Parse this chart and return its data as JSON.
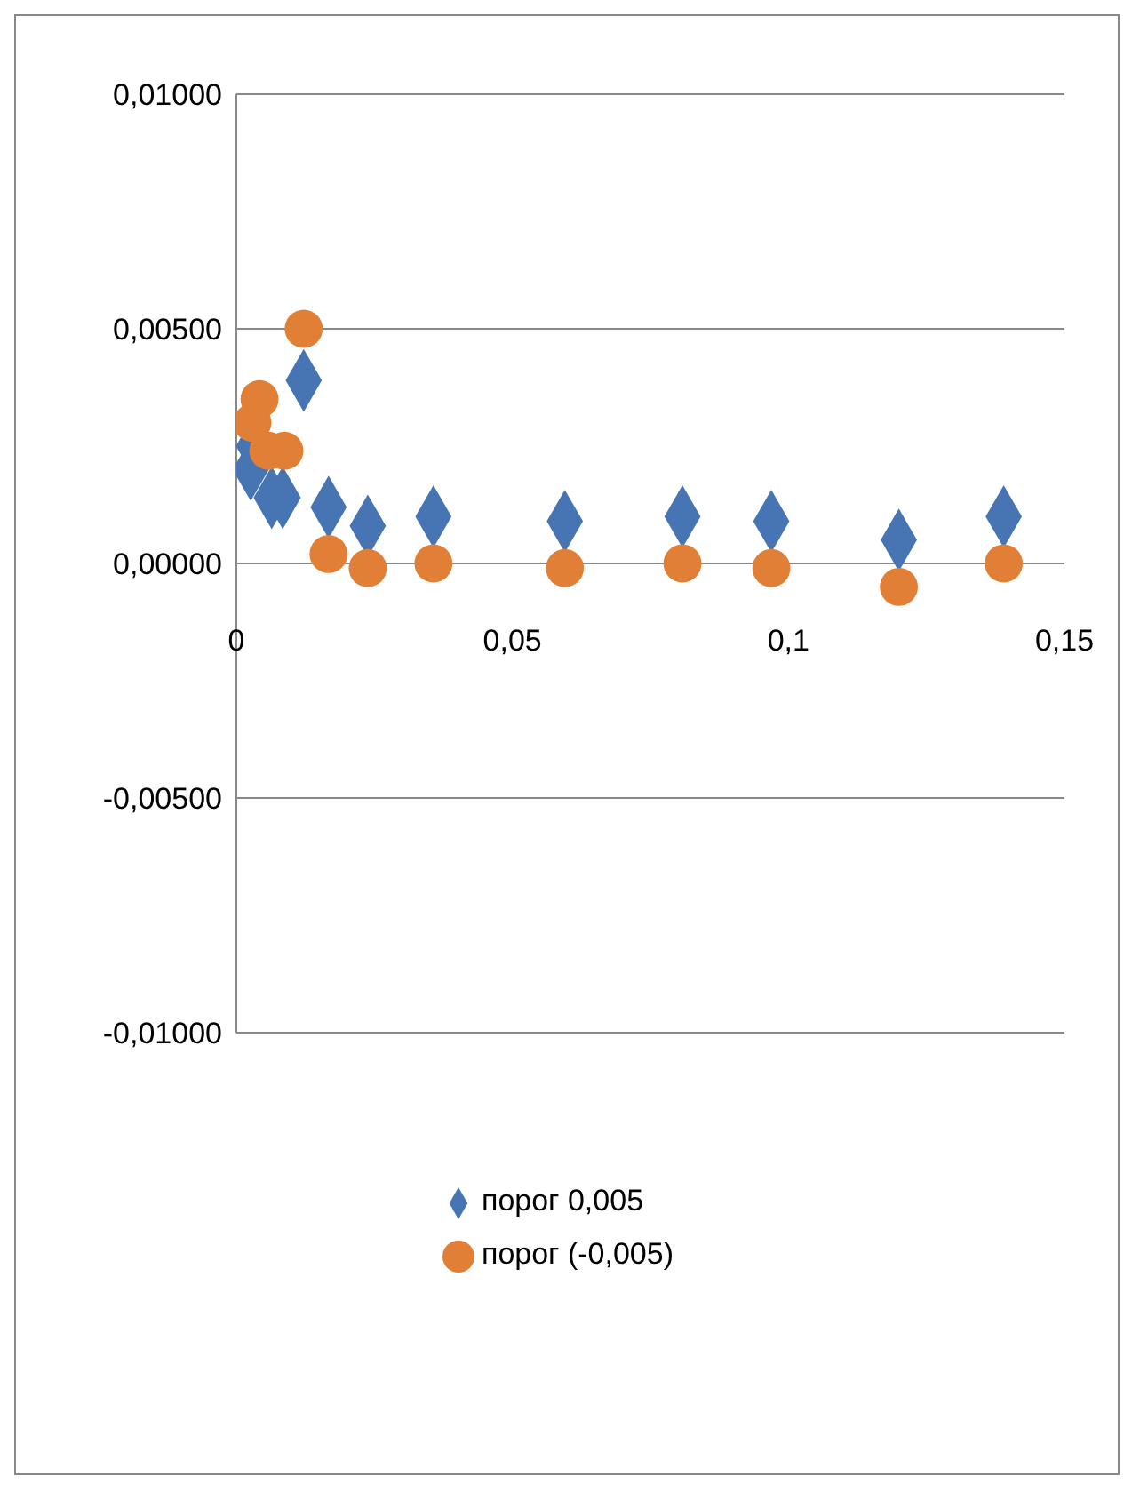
{
  "chart_data": {
    "type": "scatter",
    "xlim": [
      0,
      0.15
    ],
    "xticks": [
      0,
      {
        "value": 0.05,
        "label": "0,05"
      },
      {
        "value": 0.1,
        "label": "0,1"
      },
      {
        "value": 0.15,
        "label": "0,15"
      }
    ],
    "ylim": [
      -0.01,
      0.01
    ],
    "yticks": [
      {
        "value": -0.01,
        "label": "-0,01000"
      },
      {
        "value": -0.005,
        "label": "-0,00500"
      },
      {
        "value": 0,
        "label": "0,00000"
      },
      {
        "value": 0.005,
        "label": "0,00500"
      },
      {
        "value": 0.01,
        "label": "0,01000"
      }
    ],
    "grid": "y",
    "legend": "bottom",
    "series": [
      {
        "name": "порог 0,005",
        "color": "#4775b3",
        "marker": "diamond",
        "x": [
          0.0026,
          0.0032,
          0.0064,
          0.0084,
          0.0122,
          0.0167,
          0.0238,
          0.0357,
          0.0595,
          0.0808,
          0.0969,
          0.12,
          0.139
        ],
        "values": [
          0.002,
          0.0025,
          0.0014,
          0.0014,
          0.0039,
          0.0012,
          0.0008,
          0.001,
          0.0009,
          0.001,
          0.0009,
          0.0005,
          0.001
        ]
      },
      {
        "name": "порог (-0,005)",
        "color": "#e07f35",
        "marker": "circle",
        "x": [
          0.0029,
          0.0042,
          0.0058,
          0.0087,
          0.0122,
          0.0167,
          0.0238,
          0.0357,
          0.0595,
          0.0808,
          0.0969,
          0.12,
          0.139
        ],
        "values": [
          0.003,
          0.0035,
          0.0024,
          0.0024,
          0.005,
          0.0002,
          -0.0001,
          0,
          -0.0001,
          0,
          -0.0001,
          -0.0005,
          0
        ]
      }
    ]
  }
}
